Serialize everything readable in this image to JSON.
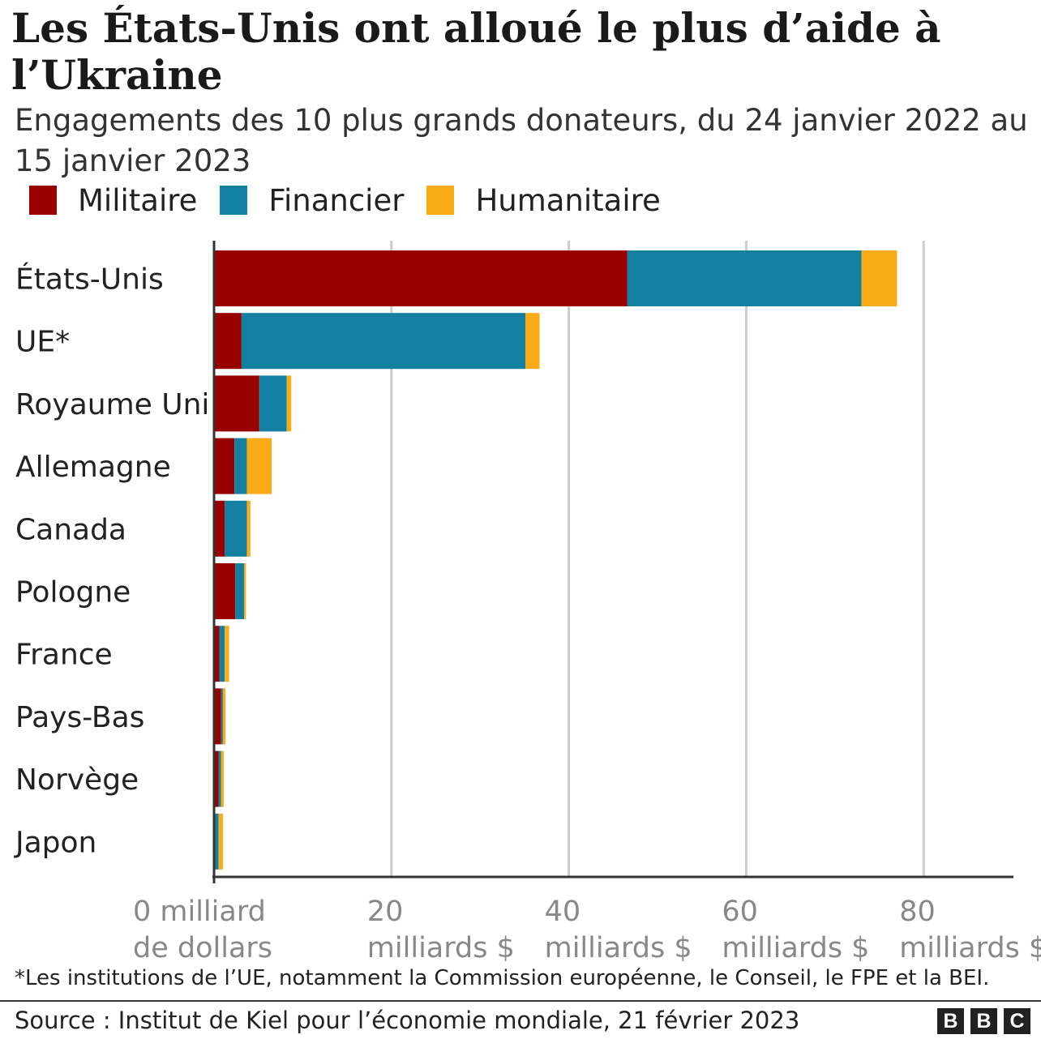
{
  "header": {
    "title": "Les États-Unis ont alloué le plus d’aide à l’Ukraine",
    "subtitle": "Engagements des 10 plus grands donateurs, du 24 janvier 2022 au 15 janvier 2023"
  },
  "colors": {
    "militaire": "#990000",
    "financier": "#1380A1",
    "humanitaire": "#FAAB18"
  },
  "chart_data": {
    "type": "bar",
    "orientation": "horizontal",
    "stacked": true,
    "categories": [
      "États-Unis",
      "UE*",
      "Royaume Uni",
      "Allemagne",
      "Canada",
      "Pologne",
      "France",
      "Pays-Bas",
      "Norvège",
      "Japon"
    ],
    "series": [
      {
        "name": "Militaire",
        "color": "#990000",
        "values": [
          46.6,
          3.1,
          5.1,
          2.3,
          1.2,
          2.4,
          0.6,
          0.8,
          0.5,
          0.0
        ]
      },
      {
        "name": "Financier",
        "color": "#1380A1",
        "values": [
          26.4,
          32.0,
          3.1,
          1.4,
          2.5,
          1.0,
          0.6,
          0.2,
          0.3,
          0.5
        ]
      },
      {
        "name": "Humanitaire",
        "color": "#FAAB18",
        "values": [
          4.0,
          1.6,
          0.5,
          2.8,
          0.4,
          0.2,
          0.5,
          0.3,
          0.3,
          0.5
        ]
      }
    ],
    "xlim": [
      0,
      90
    ],
    "x_ticks": [
      {
        "value": 0,
        "line1": "0 milliard",
        "line2": "de dollars"
      },
      {
        "value": 20,
        "line1": "20",
        "line2": "milliards $"
      },
      {
        "value": 40,
        "line1": "40",
        "line2": "milliards $"
      },
      {
        "value": 60,
        "line1": "60",
        "line2": "milliards $"
      },
      {
        "value": 80,
        "line1": "80",
        "line2": "milliards $"
      }
    ],
    "grid": true,
    "legend_position": "top-left"
  },
  "footer": {
    "note": "*Les institutions de l’UE, notamment la Commission européenne, le Conseil, le FPE et la BEI.",
    "source": "Source : Institut de Kiel pour l’économie mondiale, 21 février 2023",
    "logo": [
      "B",
      "B",
      "C"
    ]
  }
}
